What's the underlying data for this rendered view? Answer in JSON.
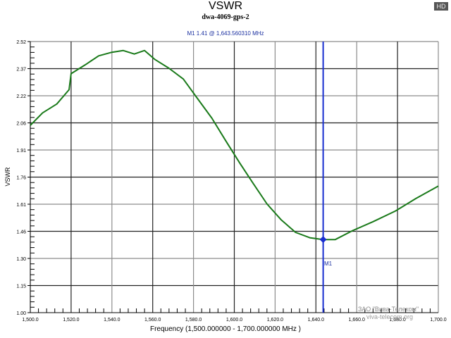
{
  "header": {
    "title": "VSWR",
    "subtitle": "dwa-4069-gps-2",
    "marker_readout": "M1   1.41 @ 1,643.560310 MHz",
    "badge": "HD"
  },
  "axes": {
    "ylabel": "VSWR",
    "xlabel": "Frequency (1,500.000000 - 1,700.000000 MHz )",
    "yticks": [
      "2.52",
      "2.37",
      "2.22",
      "2.06",
      "1.91",
      "1.76",
      "1.61",
      "1.46",
      "1.30",
      "1.15",
      "1.00"
    ],
    "xticks": [
      "1,500.0",
      "1,520.0",
      "1,540.0",
      "1,560.0",
      "1,580.0",
      "1,600.0",
      "1,620.0",
      "1,640.0",
      "1,660.0",
      "1,680.0",
      "1,700.0"
    ]
  },
  "marker": {
    "label": "M1",
    "frequency_mhz": 1643.56031,
    "value": 1.41
  },
  "watermark": {
    "line1": "ЗАО \"Вива-Телеком\"",
    "line2": "viva-telecom.org"
  },
  "colors": {
    "trace": "#1a7a1a",
    "marker": "#1a2fd0",
    "grid_dark": "#222222",
    "grid_light": "#8c8c8c"
  },
  "chart_data": {
    "type": "line",
    "title": "VSWR",
    "subtitle": "dwa-4069-gps-2",
    "xlabel": "Frequency (1,500.000000 - 1,700.000000 MHz )",
    "ylabel": "VSWR",
    "xlim": [
      1500,
      1700
    ],
    "ylim": [
      1.0,
      2.52
    ],
    "grid": true,
    "series": [
      {
        "name": "VSWR",
        "x": [
          1500,
          1506,
          1513,
          1519,
          1520,
          1527,
          1533.5,
          1540,
          1545.5,
          1551,
          1556,
          1561,
          1568,
          1575,
          1582,
          1589,
          1596,
          1602.6,
          1609.5,
          1616,
          1623,
          1630,
          1637,
          1643.56,
          1649.5,
          1658,
          1668,
          1679,
          1689,
          1700
        ],
        "y": [
          2.05,
          2.12,
          2.17,
          2.25,
          2.34,
          2.39,
          2.44,
          2.46,
          2.47,
          2.45,
          2.47,
          2.42,
          2.37,
          2.31,
          2.2,
          2.09,
          1.96,
          1.84,
          1.72,
          1.61,
          1.52,
          1.45,
          1.42,
          1.41,
          1.41,
          1.46,
          1.51,
          1.57,
          1.64,
          1.71
        ]
      }
    ],
    "annotations": [
      {
        "label": "M1",
        "x": 1643.56031,
        "y": 1.41,
        "text": "M1   1.41 @ 1,643.560310 MHz"
      }
    ]
  }
}
